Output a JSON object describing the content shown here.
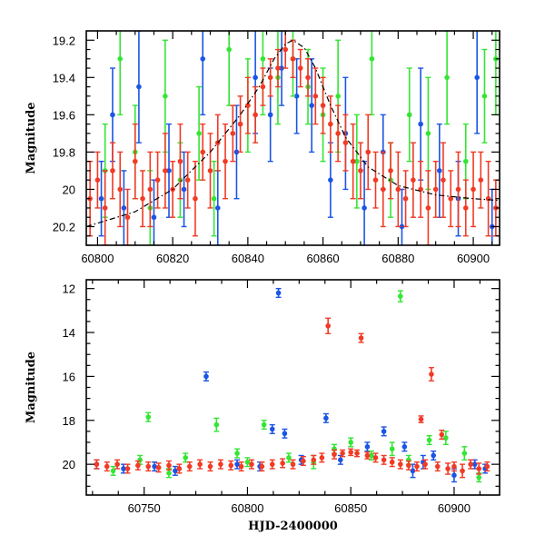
{
  "colors": {
    "blue": "#1a55e6",
    "green": "#33e633",
    "red": "#f23a24",
    "axis": "#000000",
    "model": "#000000"
  },
  "chart_data": [
    {
      "type": "scatter",
      "title": "",
      "xlabel": "",
      "ylabel": "Magnitude",
      "xlim": [
        60797,
        60907
      ],
      "ylim": [
        20.3,
        19.15
      ],
      "y_inverted": true,
      "grid": false,
      "x_ticks": [
        60800,
        60820,
        60840,
        60860,
        60880,
        60900
      ],
      "y_ticks": [
        19.2,
        19.4,
        19.6,
        19.8,
        20,
        20.2
      ],
      "series": [
        {
          "color": "blue",
          "x": [
            60801,
            60804,
            60807,
            60811,
            60815,
            60819,
            60823,
            60828,
            60832,
            60837,
            60842,
            60846,
            60849,
            60853,
            60857,
            60862,
            60866,
            60871,
            60876,
            60881,
            60886,
            60891,
            60896,
            60901,
            60905
          ],
          "y": [
            20.05,
            19.6,
            20.1,
            19.45,
            20.15,
            19.9,
            20.0,
            19.3,
            20.1,
            19.8,
            19.4,
            19.6,
            19.35,
            19.5,
            19.55,
            19.95,
            19.7,
            20.1,
            19.8,
            20.2,
            19.65,
            19.9,
            20.05,
            19.4,
            20.2
          ],
          "err": [
            0.2,
            0.25,
            0.2,
            0.3,
            0.2,
            0.25,
            0.2,
            0.3,
            0.2,
            0.25,
            0.3,
            0.25,
            0.2,
            0.2,
            0.25,
            0.2,
            0.3,
            0.25,
            0.2,
            0.2,
            0.3,
            0.25,
            0.2,
            0.3,
            0.2
          ]
        },
        {
          "color": "green",
          "x": [
            60802,
            60806,
            60810,
            60814,
            60818,
            60822,
            60827,
            60831,
            60835,
            60840,
            60844,
            60848,
            60852,
            60856,
            60860,
            60864,
            60869,
            60873,
            60878,
            60883,
            60888,
            60893,
            60898,
            60903,
            60906
          ],
          "y": [
            19.9,
            19.3,
            19.8,
            20.1,
            19.5,
            19.95,
            19.7,
            20.05,
            19.25,
            19.55,
            19.3,
            19.4,
            19.3,
            19.45,
            19.6,
            19.5,
            19.85,
            19.3,
            19.95,
            19.6,
            19.7,
            19.4,
            19.85,
            19.5,
            19.3
          ],
          "err": [
            0.25,
            0.3,
            0.25,
            0.2,
            0.3,
            0.2,
            0.25,
            0.2,
            0.3,
            0.25,
            0.3,
            0.25,
            0.2,
            0.2,
            0.25,
            0.3,
            0.25,
            0.3,
            0.2,
            0.25,
            0.3,
            0.25,
            0.2,
            0.25,
            0.3
          ]
        },
        {
          "color": "red",
          "x": [
            60798,
            60800,
            60802,
            60804,
            60806,
            60808,
            60810,
            60812,
            60814,
            60816,
            60818,
            60820,
            60822,
            60824,
            60826,
            60828,
            60830,
            60832,
            60834,
            60836,
            60838,
            60840,
            60842,
            60844,
            60846,
            60848,
            60850,
            60852,
            60854,
            60856,
            60858,
            60860,
            60862,
            60864,
            60866,
            60868,
            60870,
            60872,
            60874,
            60876,
            60878,
            60880,
            60882,
            60884,
            60886,
            60888,
            60890,
            60892,
            60894,
            60896,
            60898,
            60900,
            60902,
            60904,
            60906
          ],
          "y": [
            20.05,
            19.95,
            20.1,
            19.9,
            20.0,
            20.15,
            19.85,
            20.05,
            20.0,
            19.95,
            19.9,
            20.0,
            19.85,
            19.95,
            20.05,
            19.8,
            19.9,
            19.75,
            19.85,
            19.7,
            19.65,
            19.55,
            19.6,
            19.45,
            19.4,
            19.35,
            19.25,
            19.3,
            19.35,
            19.4,
            19.5,
            19.55,
            19.65,
            19.7,
            19.75,
            19.85,
            19.9,
            19.8,
            19.95,
            20.0,
            19.9,
            20.0,
            20.05,
            19.95,
            20.0,
            20.1,
            20.0,
            19.95,
            20.05,
            20.0,
            20.1,
            20.0,
            19.95,
            20.05,
            20.1
          ],
          "err": [
            0.2,
            0.15,
            0.2,
            0.15,
            0.2,
            0.15,
            0.2,
            0.15,
            0.2,
            0.15,
            0.2,
            0.15,
            0.2,
            0.15,
            0.2,
            0.15,
            0.2,
            0.15,
            0.2,
            0.15,
            0.15,
            0.15,
            0.15,
            0.1,
            0.1,
            0.1,
            0.1,
            0.1,
            0.1,
            0.1,
            0.15,
            0.15,
            0.15,
            0.15,
            0.15,
            0.2,
            0.15,
            0.2,
            0.15,
            0.2,
            0.15,
            0.2,
            0.15,
            0.2,
            0.15,
            0.2,
            0.15,
            0.2,
            0.15,
            0.2,
            0.15,
            0.2,
            0.15,
            0.2,
            0.15
          ]
        }
      ],
      "model_curve": {
        "style": "dash-dot",
        "x": [
          60797,
          60810,
          60820,
          60830,
          60838,
          60843,
          60847,
          60850,
          60852,
          60855,
          60858,
          60862,
          60866,
          60872,
          60880,
          60890,
          60900,
          60907
        ],
        "y": [
          20.2,
          20.12,
          20.0,
          19.8,
          19.6,
          19.45,
          19.3,
          19.22,
          19.2,
          19.24,
          19.35,
          19.55,
          19.72,
          19.88,
          19.98,
          20.03,
          20.05,
          20.06
        ]
      }
    },
    {
      "type": "scatter",
      "title": "",
      "xlabel": "HJD-2400000",
      "ylabel": "Magnitude",
      "xlim": [
        60722,
        60922
      ],
      "ylim": [
        21.4,
        11.6
      ],
      "y_inverted": true,
      "grid": false,
      "x_ticks": [
        60750,
        60800,
        60850,
        60900
      ],
      "y_ticks": [
        12,
        14,
        16,
        18,
        20
      ],
      "series": [
        {
          "color": "blue",
          "x": [
            60727,
            60740,
            60755,
            60765,
            60780,
            60795,
            60806,
            60812,
            60815,
            60818,
            60826,
            60838,
            60845,
            60858,
            60866,
            60876,
            60880,
            60885,
            60890,
            60900,
            60910,
            60915
          ],
          "y": [
            20.0,
            20.2,
            20.1,
            20.3,
            16.0,
            20.0,
            20.1,
            18.4,
            12.2,
            18.6,
            19.8,
            17.9,
            19.8,
            19.2,
            18.5,
            19.2,
            20.3,
            19.9,
            19.6,
            20.5,
            20.0,
            20.2
          ],
          "err": [
            0.2,
            0.2,
            0.2,
            0.2,
            0.2,
            0.2,
            0.2,
            0.2,
            0.2,
            0.2,
            0.2,
            0.2,
            0.2,
            0.2,
            0.2,
            0.2,
            0.3,
            0.3,
            0.2,
            0.3,
            0.2,
            0.2
          ]
        },
        {
          "color": "green",
          "x": [
            60735,
            60748,
            60752,
            60762,
            60770,
            60785,
            60795,
            60800,
            60808,
            60820,
            60832,
            60842,
            60850,
            60860,
            60870,
            60874,
            60878,
            60888,
            60896,
            60905,
            60912
          ],
          "y": [
            20.3,
            19.8,
            17.85,
            20.4,
            19.7,
            18.2,
            19.5,
            19.9,
            18.2,
            19.7,
            19.9,
            19.3,
            19.0,
            19.6,
            19.3,
            12.35,
            19.8,
            18.9,
            18.8,
            19.5,
            20.6
          ],
          "err": [
            0.2,
            0.2,
            0.2,
            0.2,
            0.2,
            0.3,
            0.2,
            0.2,
            0.2,
            0.2,
            0.3,
            0.2,
            0.2,
            0.2,
            0.3,
            0.25,
            0.2,
            0.2,
            0.3,
            0.3,
            0.2
          ]
        },
        {
          "color": "red",
          "x": [
            60727,
            60732,
            60737,
            60742,
            60747,
            60752,
            60757,
            60762,
            60767,
            60772,
            60777,
            60782,
            60787,
            60792,
            60797,
            60802,
            60807,
            60812,
            60817,
            60822,
            60827,
            60832,
            60836,
            60839,
            60842,
            60846,
            60850,
            60853,
            60855,
            60858,
            60862,
            60866,
            60870,
            60874,
            60878,
            60882,
            60884,
            60886,
            60889,
            60892,
            60894,
            60897,
            60900,
            60904,
            60908,
            60912,
            60916
          ],
          "y": [
            20.0,
            20.1,
            20.0,
            20.2,
            20.05,
            20.1,
            20.15,
            20.05,
            20.2,
            20.1,
            20.0,
            20.1,
            20.0,
            20.05,
            20.1,
            20.0,
            20.1,
            20.0,
            19.95,
            20.0,
            19.85,
            19.8,
            19.7,
            13.7,
            19.55,
            19.5,
            19.45,
            19.5,
            14.25,
            19.6,
            19.7,
            19.8,
            19.9,
            20.0,
            20.05,
            20.1,
            17.95,
            20.0,
            15.9,
            20.1,
            18.65,
            20.2,
            20.1,
            20.3,
            20.0,
            20.2,
            20.1
          ],
          "err": [
            0.2,
            0.2,
            0.2,
            0.2,
            0.2,
            0.2,
            0.2,
            0.2,
            0.2,
            0.2,
            0.2,
            0.2,
            0.2,
            0.2,
            0.2,
            0.2,
            0.2,
            0.2,
            0.2,
            0.2,
            0.2,
            0.2,
            0.2,
            0.35,
            0.2,
            0.15,
            0.15,
            0.15,
            0.2,
            0.15,
            0.2,
            0.2,
            0.2,
            0.2,
            0.2,
            0.2,
            0.15,
            0.2,
            0.3,
            0.2,
            0.2,
            0.25,
            0.2,
            0.3,
            0.2,
            0.25,
            0.2
          ]
        }
      ]
    }
  ]
}
